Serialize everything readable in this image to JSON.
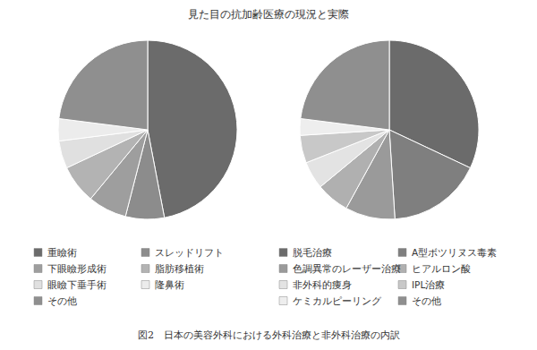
{
  "title": "見た目の抗加齢医療の現況と実際",
  "caption": "図2　日本の美容外科における外科治療と非外科治療の内訳",
  "chart_data": [
    {
      "type": "pie",
      "categories": [
        "重瞼術",
        "スレッドリフト",
        "下眼瞼形成術",
        "脂肪移植術",
        "眼瞼下垂手術",
        "隆鼻術",
        "その他"
      ],
      "values": [
        47,
        7,
        7,
        7,
        5,
        4,
        23
      ],
      "colors": [
        "#6b6b6b",
        "#8c8c8c",
        "#9e9e9e",
        "#b3b3b3",
        "#e0e0e0",
        "#ececec",
        "#8f8f8f"
      ],
      "legend": "bottom"
    },
    {
      "type": "pie",
      "categories": [
        "脱毛治療",
        "A型ボツリヌス毒素",
        "色調異常のレーザー治療",
        "ヒアルロン酸",
        "非外科的痩身",
        "IPL治療",
        "ケミカルピーリング",
        "その他"
      ],
      "values": [
        32,
        17,
        9,
        6,
        5,
        5,
        3,
        23
      ],
      "colors": [
        "#6b6b6b",
        "#7f7f7f",
        "#9a9a9a",
        "#b0b0b0",
        "#e3e3e3",
        "#c8c8c8",
        "#eeeeee",
        "#8f8f8f"
      ],
      "legend": "bottom"
    }
  ]
}
